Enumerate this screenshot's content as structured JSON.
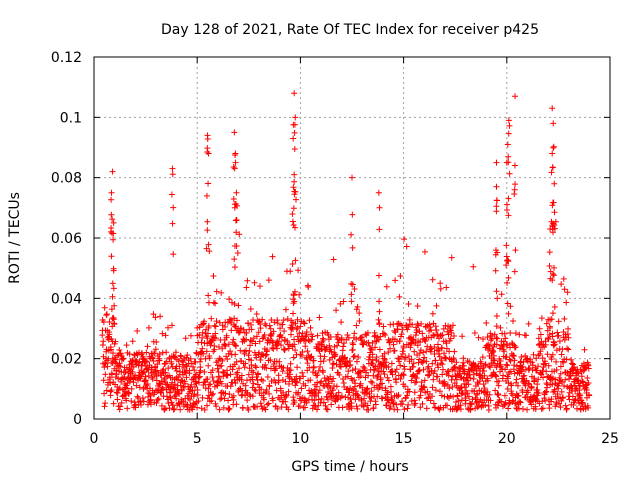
{
  "chart_data": {
    "type": "scatter",
    "title": "Day 128 of 2021, Rate Of TEC Index for receiver p425",
    "xlabel": "GPS time / hours",
    "ylabel": "ROTI / TECUs",
    "xlim": [
      0,
      25
    ],
    "ylim": [
      0,
      0.12
    ],
    "xticks": [
      0,
      5,
      10,
      15,
      20,
      25
    ],
    "yticks": [
      0,
      0.02,
      0.04,
      0.06,
      0.08,
      0.1,
      0.12
    ],
    "xtick_labels": [
      "0",
      "5",
      "10",
      "15",
      "20",
      "25"
    ],
    "ytick_labels": [
      "0",
      "0.02",
      "0.04",
      "0.06",
      "0.08",
      "0.1",
      "0.12"
    ],
    "grid": true,
    "marker": "+",
    "color": "#ff0000",
    "data_range_hours": [
      0.4,
      24.0
    ],
    "description_of_series": "Dense ROTI samples mostly between 0.003 and 0.04 TECU, with spikes",
    "spikes": [
      {
        "x": 0.9,
        "y": 0.082
      },
      {
        "x": 0.85,
        "y": 0.075
      },
      {
        "x": 0.95,
        "y": 0.065
      },
      {
        "x": 3.8,
        "y": 0.083
      },
      {
        "x": 5.5,
        "y": 0.094
      },
      {
        "x": 5.55,
        "y": 0.088
      },
      {
        "x": 6.8,
        "y": 0.095
      },
      {
        "x": 6.85,
        "y": 0.088
      },
      {
        "x": 6.9,
        "y": 0.075
      },
      {
        "x": 9.7,
        "y": 0.108
      },
      {
        "x": 9.75,
        "y": 0.1
      },
      {
        "x": 9.65,
        "y": 0.093
      },
      {
        "x": 9.7,
        "y": 0.081
      },
      {
        "x": 12.5,
        "y": 0.08
      },
      {
        "x": 13.8,
        "y": 0.075
      },
      {
        "x": 19.5,
        "y": 0.085
      },
      {
        "x": 19.5,
        "y": 0.077
      },
      {
        "x": 20.1,
        "y": 0.099
      },
      {
        "x": 20.05,
        "y": 0.091
      },
      {
        "x": 20.0,
        "y": 0.085
      },
      {
        "x": 20.4,
        "y": 0.107
      },
      {
        "x": 22.2,
        "y": 0.103
      },
      {
        "x": 22.25,
        "y": 0.098
      },
      {
        "x": 22.2,
        "y": 0.088
      },
      {
        "x": 22.3,
        "y": 0.078
      },
      {
        "x": 22.1,
        "y": 0.063
      }
    ]
  }
}
